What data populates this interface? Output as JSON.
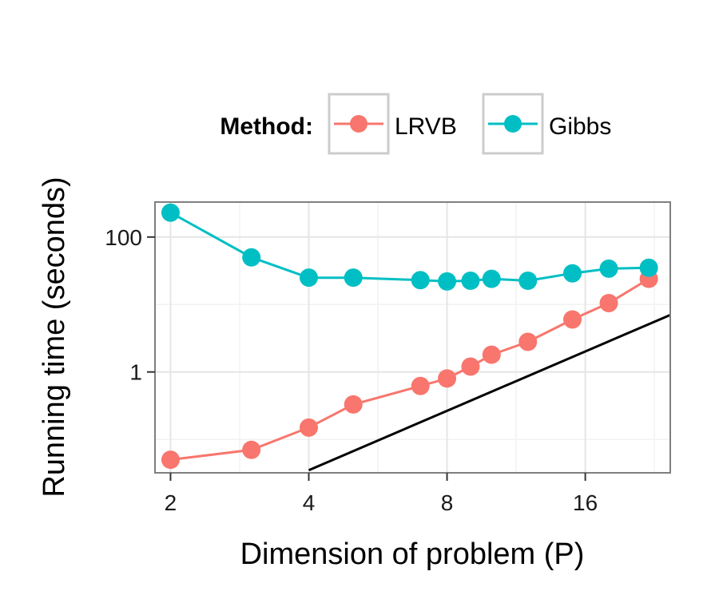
{
  "chart_data": {
    "type": "line",
    "xlabel": "Dimension of problem (P)",
    "ylabel": "Running time (seconds)",
    "x_scale": "log2",
    "y_scale": "log10",
    "xlim": [
      1.85,
      24.5
    ],
    "ylim": [
      0.032,
      330
    ],
    "x_ticks": [
      2,
      4,
      8,
      16
    ],
    "x_tick_labels": [
      "2",
      "4",
      "8",
      "16"
    ],
    "y_ticks": [
      1,
      100
    ],
    "y_tick_labels": [
      "1",
      "100"
    ],
    "grid": true,
    "legend": {
      "title": "Method:",
      "position": "top",
      "entries": [
        "LRVB",
        "Gibbs"
      ]
    },
    "series": [
      {
        "name": "LRVB",
        "color": "#F8766D",
        "x": [
          2,
          3,
          4,
          5,
          7,
          8,
          9,
          10,
          12,
          15,
          18,
          22
        ],
        "y": [
          0.05,
          0.07,
          0.15,
          0.33,
          0.62,
          0.8,
          1.2,
          1.8,
          2.8,
          6.0,
          10.5,
          24.0
        ]
      },
      {
        "name": "Gibbs",
        "color": "#00BFC4",
        "x": [
          2,
          3,
          4,
          5,
          7,
          8,
          9,
          10,
          12,
          15,
          18,
          22
        ],
        "y": [
          230,
          50,
          25,
          25,
          23,
          22,
          22.5,
          24,
          22.5,
          29,
          34,
          35
        ]
      }
    ],
    "reference_line": {
      "color": "#000000",
      "x": [
        4,
        24.5
      ],
      "y": [
        0.035,
        7.0
      ]
    }
  }
}
